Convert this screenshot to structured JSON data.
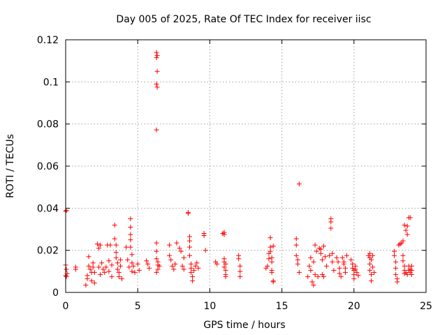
{
  "chart_data": {
    "type": "scatter",
    "title": "Day 005 of 2025, Rate Of TEC Index for receiver iisc",
    "xlabel": "GPS time / hours",
    "ylabel": "ROTI / TECUs",
    "xlim": [
      0,
      25
    ],
    "ylim": [
      0,
      0.12
    ],
    "x_ticks": [
      0,
      5,
      10,
      15,
      20,
      25
    ],
    "y_ticks": [
      0,
      0.02,
      0.04,
      0.06,
      0.08,
      0.1,
      0.12
    ],
    "x_tick_labels": [
      "0",
      "5",
      "10",
      "15",
      "20",
      "25"
    ],
    "y_tick_labels": [
      "0",
      "0.02",
      "0.04",
      "0.06",
      "0.08",
      "0.1",
      "0.12"
    ],
    "grid": true,
    "legend": "none",
    "marker": "plus",
    "color": "#ff0000",
    "series": [
      {
        "points": [
          [
            0.0,
            0.0385
          ],
          [
            0.05,
            0.039
          ],
          [
            0.0,
            0.013
          ],
          [
            0.05,
            0.011
          ],
          [
            0.1,
            0.009
          ],
          [
            0.0,
            0.008
          ],
          [
            0.05,
            0.0075
          ],
          [
            0.7,
            0.012
          ],
          [
            0.7,
            0.011
          ],
          [
            1.4,
            0.0035
          ],
          [
            1.5,
            0.008
          ],
          [
            1.5,
            0.0065
          ],
          [
            1.6,
            0.0125
          ],
          [
            1.6,
            0.017
          ],
          [
            1.7,
            0.011
          ],
          [
            1.8,
            0.0095
          ],
          [
            1.8,
            0.0055
          ],
          [
            1.9,
            0.012
          ],
          [
            1.9,
            0.014
          ],
          [
            2.0,
            0.0045
          ],
          [
            2.0,
            0.0095
          ],
          [
            2.2,
            0.023
          ],
          [
            2.3,
            0.021
          ],
          [
            2.3,
            0.012
          ],
          [
            2.4,
            0.0085
          ],
          [
            2.4,
            0.0225
          ],
          [
            2.5,
            0.014
          ],
          [
            2.6,
            0.011
          ],
          [
            2.7,
            0.0095
          ],
          [
            2.8,
            0.012
          ],
          [
            2.9,
            0.0225
          ],
          [
            3.0,
            0.015
          ],
          [
            3.0,
            0.01
          ],
          [
            3.1,
            0.0225
          ],
          [
            3.2,
            0.013
          ],
          [
            3.2,
            0.0075
          ],
          [
            3.4,
            0.032
          ],
          [
            3.4,
            0.0255
          ],
          [
            3.5,
            0.0225
          ],
          [
            3.5,
            0.019
          ],
          [
            3.5,
            0.0165
          ],
          [
            3.6,
            0.014
          ],
          [
            3.6,
            0.011
          ],
          [
            3.7,
            0.0095
          ],
          [
            3.7,
            0.0075
          ],
          [
            3.8,
            0.0125
          ],
          [
            3.8,
            0.0155
          ],
          [
            3.9,
            0.0065
          ],
          [
            4.2,
            0.0215
          ],
          [
            4.3,
            0.0155
          ],
          [
            4.4,
            0.012
          ],
          [
            4.5,
            0.035
          ],
          [
            4.5,
            0.031
          ],
          [
            4.5,
            0.0275
          ],
          [
            4.5,
            0.025
          ],
          [
            4.5,
            0.0215
          ],
          [
            4.6,
            0.018
          ],
          [
            4.6,
            0.014
          ],
          [
            4.6,
            0.01
          ],
          [
            4.7,
            0.0125
          ],
          [
            4.8,
            0.0095
          ],
          [
            5.0,
            0.0135
          ],
          [
            5.1,
            0.0105
          ],
          [
            5.6,
            0.015
          ],
          [
            5.7,
            0.0135
          ],
          [
            5.8,
            0.0115
          ],
          [
            6.3,
            0.114
          ],
          [
            6.3,
            0.1115
          ],
          [
            6.35,
            0.1125
          ],
          [
            6.35,
            0.105
          ],
          [
            6.3,
            0.099
          ],
          [
            6.35,
            0.0975
          ],
          [
            6.3,
            0.0772
          ],
          [
            6.3,
            0.0235
          ],
          [
            6.3,
            0.0195
          ],
          [
            6.3,
            0.016
          ],
          [
            6.4,
            0.0145
          ],
          [
            6.4,
            0.013
          ],
          [
            6.4,
            0.011
          ],
          [
            6.3,
            0.0095
          ],
          [
            6.5,
            0.0125
          ],
          [
            7.2,
            0.0175
          ],
          [
            7.2,
            0.0225
          ],
          [
            7.3,
            0.0155
          ],
          [
            7.4,
            0.0125
          ],
          [
            7.5,
            0.011
          ],
          [
            7.6,
            0.0135
          ],
          [
            7.7,
            0.0235
          ],
          [
            7.9,
            0.021
          ],
          [
            8.0,
            0.0195
          ],
          [
            8.1,
            0.0125
          ],
          [
            8.2,
            0.0165
          ],
          [
            8.2,
            0.011
          ],
          [
            8.5,
            0.038
          ],
          [
            8.5,
            0.0375
          ],
          [
            8.6,
            0.0265
          ],
          [
            8.6,
            0.0245
          ],
          [
            8.6,
            0.0215
          ],
          [
            8.6,
            0.0175
          ],
          [
            8.7,
            0.0135
          ],
          [
            8.7,
            0.0115
          ],
          [
            8.7,
            0.0095
          ],
          [
            8.8,
            0.0075
          ],
          [
            8.8,
            0.0055
          ],
          [
            8.9,
            0.0105
          ],
          [
            9.0,
            0.0125
          ],
          [
            9.1,
            0.014
          ],
          [
            9.2,
            0.0115
          ],
          [
            9.6,
            0.028
          ],
          [
            9.6,
            0.027
          ],
          [
            9.7,
            0.02
          ],
          [
            10.4,
            0.0145
          ],
          [
            10.5,
            0.0135
          ],
          [
            10.9,
            0.028
          ],
          [
            11.0,
            0.0275
          ],
          [
            11.0,
            0.0285
          ],
          [
            11.0,
            0.016
          ],
          [
            11.0,
            0.0145
          ],
          [
            11.0,
            0.012
          ],
          [
            11.1,
            0.0105
          ],
          [
            11.1,
            0.0085
          ],
          [
            11.1,
            0.0075
          ],
          [
            11.1,
            0.0135
          ],
          [
            12.0,
            0.0175
          ],
          [
            12.0,
            0.016
          ],
          [
            12.1,
            0.0125
          ],
          [
            12.1,
            0.01
          ],
          [
            12.1,
            0.0075
          ],
          [
            13.9,
            0.0115
          ],
          [
            14.0,
            0.0125
          ],
          [
            14.1,
            0.016
          ],
          [
            14.1,
            0.0185
          ],
          [
            14.2,
            0.026
          ],
          [
            14.2,
            0.0215
          ],
          [
            14.2,
            0.0195
          ],
          [
            14.3,
            0.0165
          ],
          [
            14.3,
            0.0145
          ],
          [
            14.3,
            0.0105
          ],
          [
            14.3,
            0.0095
          ],
          [
            14.4,
            0.022
          ],
          [
            14.4,
            0.0055
          ],
          [
            14.4,
            0.005
          ],
          [
            16.0,
            0.0255
          ],
          [
            16.0,
            0.0225
          ],
          [
            16.0,
            0.0175
          ],
          [
            16.1,
            0.0155
          ],
          [
            16.1,
            0.0135
          ],
          [
            16.2,
            0.0515
          ],
          [
            16.2,
            0.0095
          ],
          [
            16.8,
            0.0075
          ],
          [
            16.9,
            0.0125
          ],
          [
            17.0,
            0.0165
          ],
          [
            17.0,
            0.0105
          ],
          [
            17.1,
            0.005
          ],
          [
            17.2,
            0.0035
          ],
          [
            17.2,
            0.0145
          ],
          [
            17.3,
            0.0225
          ],
          [
            17.3,
            0.0085
          ],
          [
            17.4,
            0.0195
          ],
          [
            17.5,
            0.0075
          ],
          [
            17.6,
            0.021
          ],
          [
            17.7,
            0.0205
          ],
          [
            17.7,
            0.0185
          ],
          [
            17.8,
            0.0155
          ],
          [
            17.8,
            0.0085
          ],
          [
            17.9,
            0.0075
          ],
          [
            17.9,
            0.022
          ],
          [
            18.0,
            0.017
          ],
          [
            18.1,
            0.0125
          ],
          [
            18.3,
            0.0175
          ],
          [
            18.4,
            0.035
          ],
          [
            18.4,
            0.0335
          ],
          [
            18.4,
            0.0305
          ],
          [
            18.5,
            0.0185
          ],
          [
            18.5,
            0.0145
          ],
          [
            18.6,
            0.0105
          ],
          [
            18.8,
            0.0165
          ],
          [
            18.9,
            0.0145
          ],
          [
            19.0,
            0.0115
          ],
          [
            19.0,
            0.009
          ],
          [
            19.1,
            0.0075
          ],
          [
            19.2,
            0.0165
          ],
          [
            19.3,
            0.0145
          ],
          [
            19.3,
            0.0135
          ],
          [
            19.4,
            0.0115
          ],
          [
            19.4,
            0.0095
          ],
          [
            19.5,
            0.0175
          ],
          [
            19.8,
            0.0155
          ],
          [
            19.9,
            0.0135
          ],
          [
            19.9,
            0.0115
          ],
          [
            20.0,
            0.0105
          ],
          [
            20.0,
            0.0085
          ],
          [
            20.0,
            0.0065
          ],
          [
            20.1,
            0.011
          ],
          [
            20.1,
            0.0125
          ],
          [
            20.2,
            0.0095
          ],
          [
            20.3,
            0.008
          ],
          [
            21.0,
            0.0175
          ],
          [
            21.1,
            0.0185
          ],
          [
            21.1,
            0.0165
          ],
          [
            21.1,
            0.0135
          ],
          [
            21.1,
            0.0105
          ],
          [
            21.2,
            0.0085
          ],
          [
            21.2,
            0.0055
          ],
          [
            21.2,
            0.0155
          ],
          [
            21.3,
            0.0175
          ],
          [
            21.3,
            0.012
          ],
          [
            21.4,
            0.0095
          ],
          [
            22.8,
            0.0195
          ],
          [
            22.8,
            0.0175
          ],
          [
            22.9,
            0.0145
          ],
          [
            22.9,
            0.0115
          ],
          [
            22.9,
            0.0085
          ],
          [
            23.0,
            0.0065
          ],
          [
            23.0,
            0.005
          ],
          [
            23.1,
            0.0225
          ],
          [
            23.2,
            0.023
          ],
          [
            23.3,
            0.0235
          ],
          [
            23.4,
            0.0245
          ],
          [
            23.4,
            0.0175
          ],
          [
            23.4,
            0.015
          ],
          [
            23.5,
            0.0125
          ],
          [
            23.5,
            0.0105
          ],
          [
            23.5,
            0.009
          ],
          [
            23.5,
            0.032
          ],
          [
            23.6,
            0.0295
          ],
          [
            23.7,
            0.0315
          ],
          [
            23.7,
            0.0275
          ],
          [
            23.8,
            0.0355
          ],
          [
            23.8,
            0.0125
          ],
          [
            23.9,
            0.0355
          ],
          [
            23.9,
            0.011
          ],
          [
            24.0,
            0.0105
          ],
          [
            24.0,
            0.0085
          ],
          [
            23.6,
            0.0095
          ],
          [
            23.7,
            0.0085
          ],
          [
            23.8,
            0.0105
          ],
          [
            23.9,
            0.0095
          ],
          [
            24.0,
            0.0125
          ]
        ]
      }
    ]
  }
}
